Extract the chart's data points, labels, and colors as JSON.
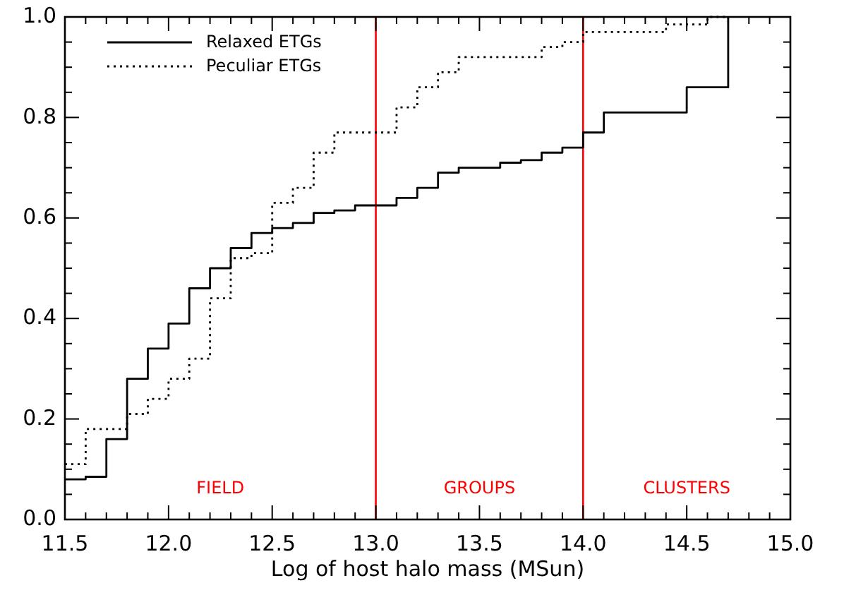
{
  "chart_data": {
    "type": "step",
    "xlabel": "Log of host halo mass (MSun)",
    "x": [
      11.5,
      11.6,
      11.7,
      11.8,
      11.9,
      12.0,
      12.1,
      12.2,
      12.3,
      12.4,
      12.5,
      12.6,
      12.7,
      12.8,
      12.9,
      13.0,
      13.1,
      13.2,
      13.3,
      13.4,
      13.5,
      13.6,
      13.7,
      13.8,
      13.9,
      14.0,
      14.1,
      14.2,
      14.3,
      14.4,
      14.5,
      14.6,
      14.7
    ],
    "series": [
      {
        "name": "Relaxed ETGs",
        "color": "#000000",
        "line_style": "solid",
        "values": [
          0.08,
          0.085,
          0.16,
          0.28,
          0.34,
          0.39,
          0.46,
          0.5,
          0.54,
          0.57,
          0.58,
          0.59,
          0.61,
          0.615,
          0.625,
          0.625,
          0.64,
          0.66,
          0.69,
          0.7,
          0.7,
          0.71,
          0.715,
          0.73,
          0.74,
          0.77,
          0.81,
          0.81,
          0.81,
          0.81,
          0.86,
          0.86,
          1.0
        ]
      },
      {
        "name": "Peculiar ETGs",
        "color": "#000000",
        "line_style": "dotted",
        "values": [
          0.11,
          0.18,
          0.18,
          0.21,
          0.24,
          0.28,
          0.32,
          0.44,
          0.52,
          0.53,
          0.63,
          0.66,
          0.73,
          0.77,
          0.77,
          0.77,
          0.82,
          0.86,
          0.89,
          0.92,
          0.92,
          0.92,
          0.92,
          0.94,
          0.95,
          0.97,
          0.97,
          0.97,
          0.97,
          0.985,
          0.985,
          1.0,
          1.0
        ]
      }
    ],
    "xlim": [
      11.5,
      15.0
    ],
    "ylim": [
      0,
      1
    ],
    "xticks": [
      {
        "value": 11.5,
        "label": "11.5"
      },
      {
        "value": 11.6,
        "label": null
      },
      {
        "value": 11.7,
        "label": null
      },
      {
        "value": 11.8,
        "label": null
      },
      {
        "value": 11.9,
        "label": null
      },
      {
        "value": 12,
        "label": "12.0"
      },
      {
        "value": 12.1,
        "label": null
      },
      {
        "value": 12.2,
        "label": null
      },
      {
        "value": 12.3,
        "label": null
      },
      {
        "value": 12.4,
        "label": null
      },
      {
        "value": 12.5,
        "label": "12.5"
      },
      {
        "value": 12.6,
        "label": null
      },
      {
        "value": 12.7,
        "label": null
      },
      {
        "value": 12.8,
        "label": null
      },
      {
        "value": 12.9,
        "label": null
      },
      {
        "value": 13,
        "label": "13.0"
      },
      {
        "value": 13.1,
        "label": null
      },
      {
        "value": 13.2,
        "label": null
      },
      {
        "value": 13.3,
        "label": null
      },
      {
        "value": 13.4,
        "label": null
      },
      {
        "value": 13.5,
        "label": "13.5"
      },
      {
        "value": 13.6,
        "label": null
      },
      {
        "value": 13.7,
        "label": null
      },
      {
        "value": 13.8,
        "label": null
      },
      {
        "value": 13.9,
        "label": null
      },
      {
        "value": 14,
        "label": "14.0"
      },
      {
        "value": 14.1,
        "label": null
      },
      {
        "value": 14.2,
        "label": null
      },
      {
        "value": 14.3,
        "label": null
      },
      {
        "value": 14.4,
        "label": null
      },
      {
        "value": 14.5,
        "label": "14.5"
      },
      {
        "value": 14.6,
        "label": null
      },
      {
        "value": 14.7,
        "label": null
      },
      {
        "value": 14.8,
        "label": null
      },
      {
        "value": 14.9,
        "label": null
      },
      {
        "value": 15,
        "label": "15.0"
      }
    ],
    "yticks": [
      {
        "value": 0,
        "label": "0.0"
      },
      {
        "value": 0.05,
        "label": null
      },
      {
        "value": 0.1,
        "label": null
      },
      {
        "value": 0.15,
        "label": null
      },
      {
        "value": 0.2,
        "label": "0.2"
      },
      {
        "value": 0.25,
        "label": null
      },
      {
        "value": 0.3,
        "label": null
      },
      {
        "value": 0.35,
        "label": null
      },
      {
        "value": 0.4,
        "label": "0.4"
      },
      {
        "value": 0.45,
        "label": null
      },
      {
        "value": 0.5,
        "label": null
      },
      {
        "value": 0.55,
        "label": null
      },
      {
        "value": 0.6,
        "label": "0.6"
      },
      {
        "value": 0.65,
        "label": null
      },
      {
        "value": 0.7,
        "label": null
      },
      {
        "value": 0.75,
        "label": null
      },
      {
        "value": 0.8,
        "label": "0.8"
      },
      {
        "value": 0.85,
        "label": null
      },
      {
        "value": 0.9,
        "label": null
      },
      {
        "value": 0.95,
        "label": null
      },
      {
        "value": 1,
        "label": "1.0"
      }
    ],
    "ref_lines": [
      {
        "axis": "x",
        "value": 13.0,
        "color": "#ff0000"
      },
      {
        "axis": "x",
        "value": 14.0,
        "color": "#ff0000"
      }
    ],
    "annotations": [
      "FIELD",
      "GROUPS",
      "CLUSTERS"
    ],
    "grid": false,
    "legend": "top left"
  }
}
